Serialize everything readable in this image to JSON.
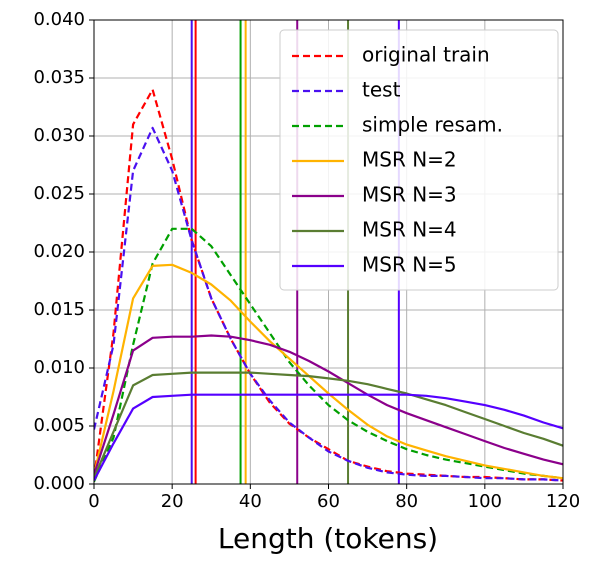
{
  "chart_data": {
    "type": "line",
    "xlabel": "Length (tokens)",
    "x": [
      0,
      5,
      10,
      15,
      20,
      25,
      30,
      35,
      40,
      45,
      50,
      55,
      60,
      65,
      70,
      75,
      80,
      85,
      90,
      95,
      100,
      105,
      110,
      115,
      120
    ],
    "xlim": [
      0,
      120
    ],
    "xticks": [
      0,
      20,
      40,
      60,
      80,
      100,
      120
    ],
    "ylim": [
      0,
      0.04
    ],
    "yticks": [
      {
        "value": 0,
        "label": "0.000"
      },
      {
        "value": 0.005,
        "label": "0.005"
      },
      {
        "value": 0.01,
        "label": "0.010"
      },
      {
        "value": 0.015,
        "label": "0.015"
      },
      {
        "value": 0.02,
        "label": "0.020"
      },
      {
        "value": 0.025,
        "label": "0.025"
      },
      {
        "value": 0.03,
        "label": "0.030"
      },
      {
        "value": 0.035,
        "label": "0.035"
      },
      {
        "value": 0.04,
        "label": "0.040"
      }
    ],
    "grid": true,
    "legend": "upper right",
    "series": [
      {
        "name": "original train",
        "color": "#ff0000",
        "dash": true,
        "vline": 26,
        "values": [
          0.0005,
          0.013,
          0.031,
          0.034,
          0.028,
          0.021,
          0.016,
          0.0125,
          0.0095,
          0.007,
          0.0052,
          0.004,
          0.003,
          0.002,
          0.0015,
          0.0011,
          0.0009,
          0.0008,
          0.0007,
          0.0006,
          0.0006,
          0.0005,
          0.0004,
          0.0004,
          0.0003
        ]
      },
      {
        "name": "test",
        "color": "#4a10f0",
        "dash": true,
        "vline": 25,
        "values": [
          0.0047,
          0.012,
          0.027,
          0.0307,
          0.027,
          0.021,
          0.016,
          0.0125,
          0.0095,
          0.0072,
          0.0053,
          0.004,
          0.0028,
          0.002,
          0.0014,
          0.001,
          0.0008,
          0.0007,
          0.0007,
          0.0006,
          0.0005,
          0.0005,
          0.0004,
          0.0004,
          0.0003
        ]
      },
      {
        "name": "simple resam.",
        "color": "#00a000",
        "dash": true,
        "vline": 37.5,
        "values": [
          0.0002,
          0.004,
          0.012,
          0.019,
          0.022,
          0.022,
          0.0205,
          0.018,
          0.0155,
          0.013,
          0.0105,
          0.0085,
          0.0068,
          0.0055,
          0.0045,
          0.0037,
          0.003,
          0.0025,
          0.0021,
          0.0018,
          0.0015,
          0.0012,
          0.0009,
          0.0007,
          0.0005
        ]
      },
      {
        "name": "MSR N=2",
        "color": "#ffb300",
        "dash": false,
        "vline": 38.8,
        "values": [
          0.0008,
          0.008,
          0.016,
          0.0188,
          0.0189,
          0.0182,
          0.0172,
          0.0158,
          0.014,
          0.0123,
          0.0108,
          0.0093,
          0.0078,
          0.0064,
          0.0051,
          0.0041,
          0.0034,
          0.0029,
          0.0024,
          0.002,
          0.0016,
          0.0013,
          0.001,
          0.0007,
          0.0005
        ]
      },
      {
        "name": "MSR N=3",
        "color": "#8b008b",
        "dash": false,
        "vline": 52,
        "values": [
          0.0008,
          0.006,
          0.0115,
          0.0126,
          0.0127,
          0.0127,
          0.0128,
          0.0127,
          0.0124,
          0.012,
          0.0114,
          0.0106,
          0.0097,
          0.0087,
          0.0077,
          0.0068,
          0.0061,
          0.0055,
          0.0049,
          0.0043,
          0.0037,
          0.0031,
          0.0026,
          0.0021,
          0.0017
        ]
      },
      {
        "name": "MSR N=4",
        "color": "#5a7d32",
        "dash": false,
        "vline": 65,
        "values": [
          0.0005,
          0.0045,
          0.0085,
          0.0094,
          0.0095,
          0.0096,
          0.0096,
          0.0096,
          0.0096,
          0.0095,
          0.0094,
          0.0093,
          0.0091,
          0.0089,
          0.0086,
          0.0082,
          0.0078,
          0.0073,
          0.0068,
          0.0062,
          0.0056,
          0.005,
          0.0044,
          0.0039,
          0.0033
        ]
      },
      {
        "name": "MSR N=5",
        "color": "#5500ff",
        "dash": false,
        "vline": 78,
        "values": [
          0.0003,
          0.0035,
          0.0065,
          0.0075,
          0.0076,
          0.0077,
          0.0077,
          0.0077,
          0.0077,
          0.0077,
          0.0077,
          0.0077,
          0.0077,
          0.0077,
          0.0077,
          0.0077,
          0.0077,
          0.0076,
          0.0074,
          0.0071,
          0.0068,
          0.0064,
          0.0059,
          0.0053,
          0.0048
        ]
      }
    ]
  }
}
